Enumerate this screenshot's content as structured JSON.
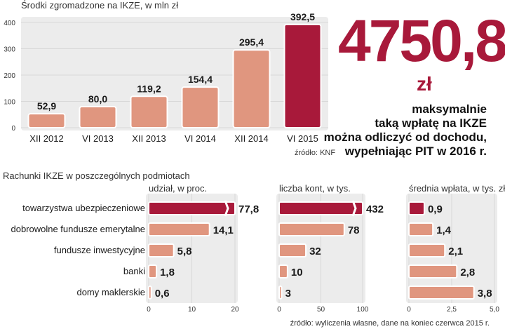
{
  "colors": {
    "bar": "#e0967f",
    "highlight": "#a8193a",
    "panel": "#ececec",
    "grid": "#d0d0d0"
  },
  "callout": {
    "value": "4750,8",
    "unit": "zł",
    "lines": [
      "maksymalnie",
      "taką wpłatę na IKZE",
      "można odliczyć od dochodu,",
      "wypełniając PIT w 2016 r."
    ]
  },
  "chart_data": [
    {
      "type": "bar",
      "title": "Środki zgromadzone na IKZE, w mln zł",
      "categories": [
        "XII 2012",
        "VI 2013",
        "XII 2013",
        "VI 2014",
        "XII 2014",
        "VI 2015"
      ],
      "values": [
        52.9,
        80.0,
        119.2,
        154.4,
        295.4,
        392.5
      ],
      "value_labels": [
        "52,9",
        "80,0",
        "119,2",
        "154,4",
        "295,4",
        "392,5"
      ],
      "highlight_index": 5,
      "ylim": [
        0,
        400
      ],
      "yticks": [
        0,
        100,
        200,
        300,
        400
      ],
      "source": "źródło: KNF"
    },
    {
      "type": "bar",
      "orientation": "horizontal",
      "title": "Rachunki IKZE w poszczególnych podmiotach",
      "categories": [
        "towarzystwa ubezpieczeniowe",
        "dobrowolne fundusze emerytalne",
        "fundusze inwestycyjne",
        "banki",
        "domy maklerskie"
      ],
      "panels": [
        {
          "subtitle": "udział, w proc.",
          "values": [
            77.8,
            14.1,
            5.8,
            1.8,
            0.6
          ],
          "value_labels": [
            "77,8",
            "14,1",
            "5,8",
            "1,8",
            "0,6"
          ],
          "xlim": [
            0,
            20
          ],
          "xticks": [
            0,
            10,
            20
          ],
          "xtick_labels": [
            "0",
            "10",
            "20"
          ],
          "broken": [
            0
          ]
        },
        {
          "subtitle": "liczba kont, w tys.",
          "values": [
            432,
            78,
            32,
            10,
            3
          ],
          "value_labels": [
            "432",
            "78",
            "32",
            "10",
            "3"
          ],
          "xlim": [
            0,
            100
          ],
          "xticks": [
            0,
            50,
            100
          ],
          "xtick_labels": [
            "0",
            "50",
            "100"
          ],
          "broken": [
            0
          ]
        },
        {
          "subtitle": "średnia wpłata, w tys. zł",
          "values": [
            0.9,
            1.4,
            2.1,
            2.8,
            3.8
          ],
          "value_labels": [
            "0,9",
            "1,4",
            "2,1",
            "2,8",
            "3,8"
          ],
          "xlim": [
            0,
            5
          ],
          "xticks": [
            0,
            2.5,
            5
          ],
          "xtick_labels": [
            "0",
            "2,5",
            "5,0"
          ],
          "broken": []
        }
      ],
      "highlight_index": 0,
      "source": "źródło: wyliczenia własne, dane na koniec czerwca 2015 r."
    }
  ]
}
